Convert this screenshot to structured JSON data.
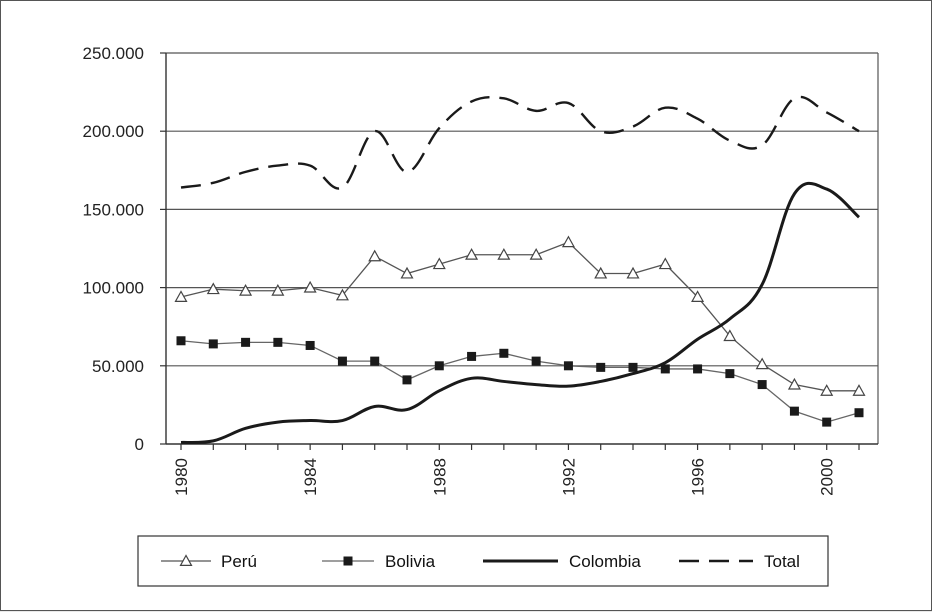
{
  "chart_data": {
    "type": "line",
    "title": "",
    "xlabel": "",
    "ylabel": "",
    "x": [
      1980,
      1981,
      1982,
      1983,
      1984,
      1985,
      1986,
      1987,
      1988,
      1989,
      1990,
      1991,
      1992,
      1993,
      1994,
      1995,
      1996,
      1997,
      1998,
      1999,
      2000,
      2001
    ],
    "x_ticks": [
      1980,
      1984,
      1988,
      1992,
      1996,
      2000
    ],
    "x_tick_labels": [
      "1980",
      "1984",
      "1988",
      "1992",
      "1996",
      "2000"
    ],
    "ylim": [
      0,
      250000
    ],
    "y_ticks": [
      0,
      50000,
      100000,
      150000,
      200000,
      250000
    ],
    "y_tick_labels": [
      "0",
      "50.000",
      "100.000",
      "150.000",
      "200.000",
      "250.000"
    ],
    "grid": "horizontal",
    "legend_position": "bottom",
    "series": [
      {
        "name": "Perú",
        "style": "thin-triangle",
        "color": "#555555",
        "values": [
          94000,
          99000,
          98000,
          98000,
          100000,
          95000,
          120000,
          109000,
          115000,
          121000,
          121000,
          121000,
          129000,
          109000,
          109000,
          115000,
          94000,
          69000,
          51000,
          38000,
          34000,
          34000
        ]
      },
      {
        "name": "Bolivia",
        "style": "square",
        "color": "#222222",
        "values": [
          66000,
          64000,
          65000,
          65000,
          63000,
          53000,
          53000,
          41000,
          50000,
          56000,
          58000,
          53000,
          50000,
          49000,
          49000,
          48000,
          48000,
          45000,
          38000,
          21000,
          14000,
          20000
        ]
      },
      {
        "name": "Colombia",
        "style": "thick-solid",
        "color": "#1a1a1a",
        "values": [
          1000,
          2000,
          10000,
          14000,
          15000,
          15000,
          24000,
          22000,
          34000,
          42000,
          40000,
          38000,
          37000,
          40000,
          45000,
          52000,
          67000,
          80000,
          102000,
          160000,
          163000,
          145000
        ]
      },
      {
        "name": "Total",
        "style": "dashed",
        "color": "#1a1a1a",
        "values": [
          164000,
          167000,
          174000,
          178000,
          178000,
          164000,
          200000,
          174000,
          202000,
          219000,
          221000,
          213000,
          218000,
          200000,
          203000,
          215000,
          208000,
          194000,
          191000,
          221000,
          212000,
          200000
        ]
      }
    ]
  }
}
